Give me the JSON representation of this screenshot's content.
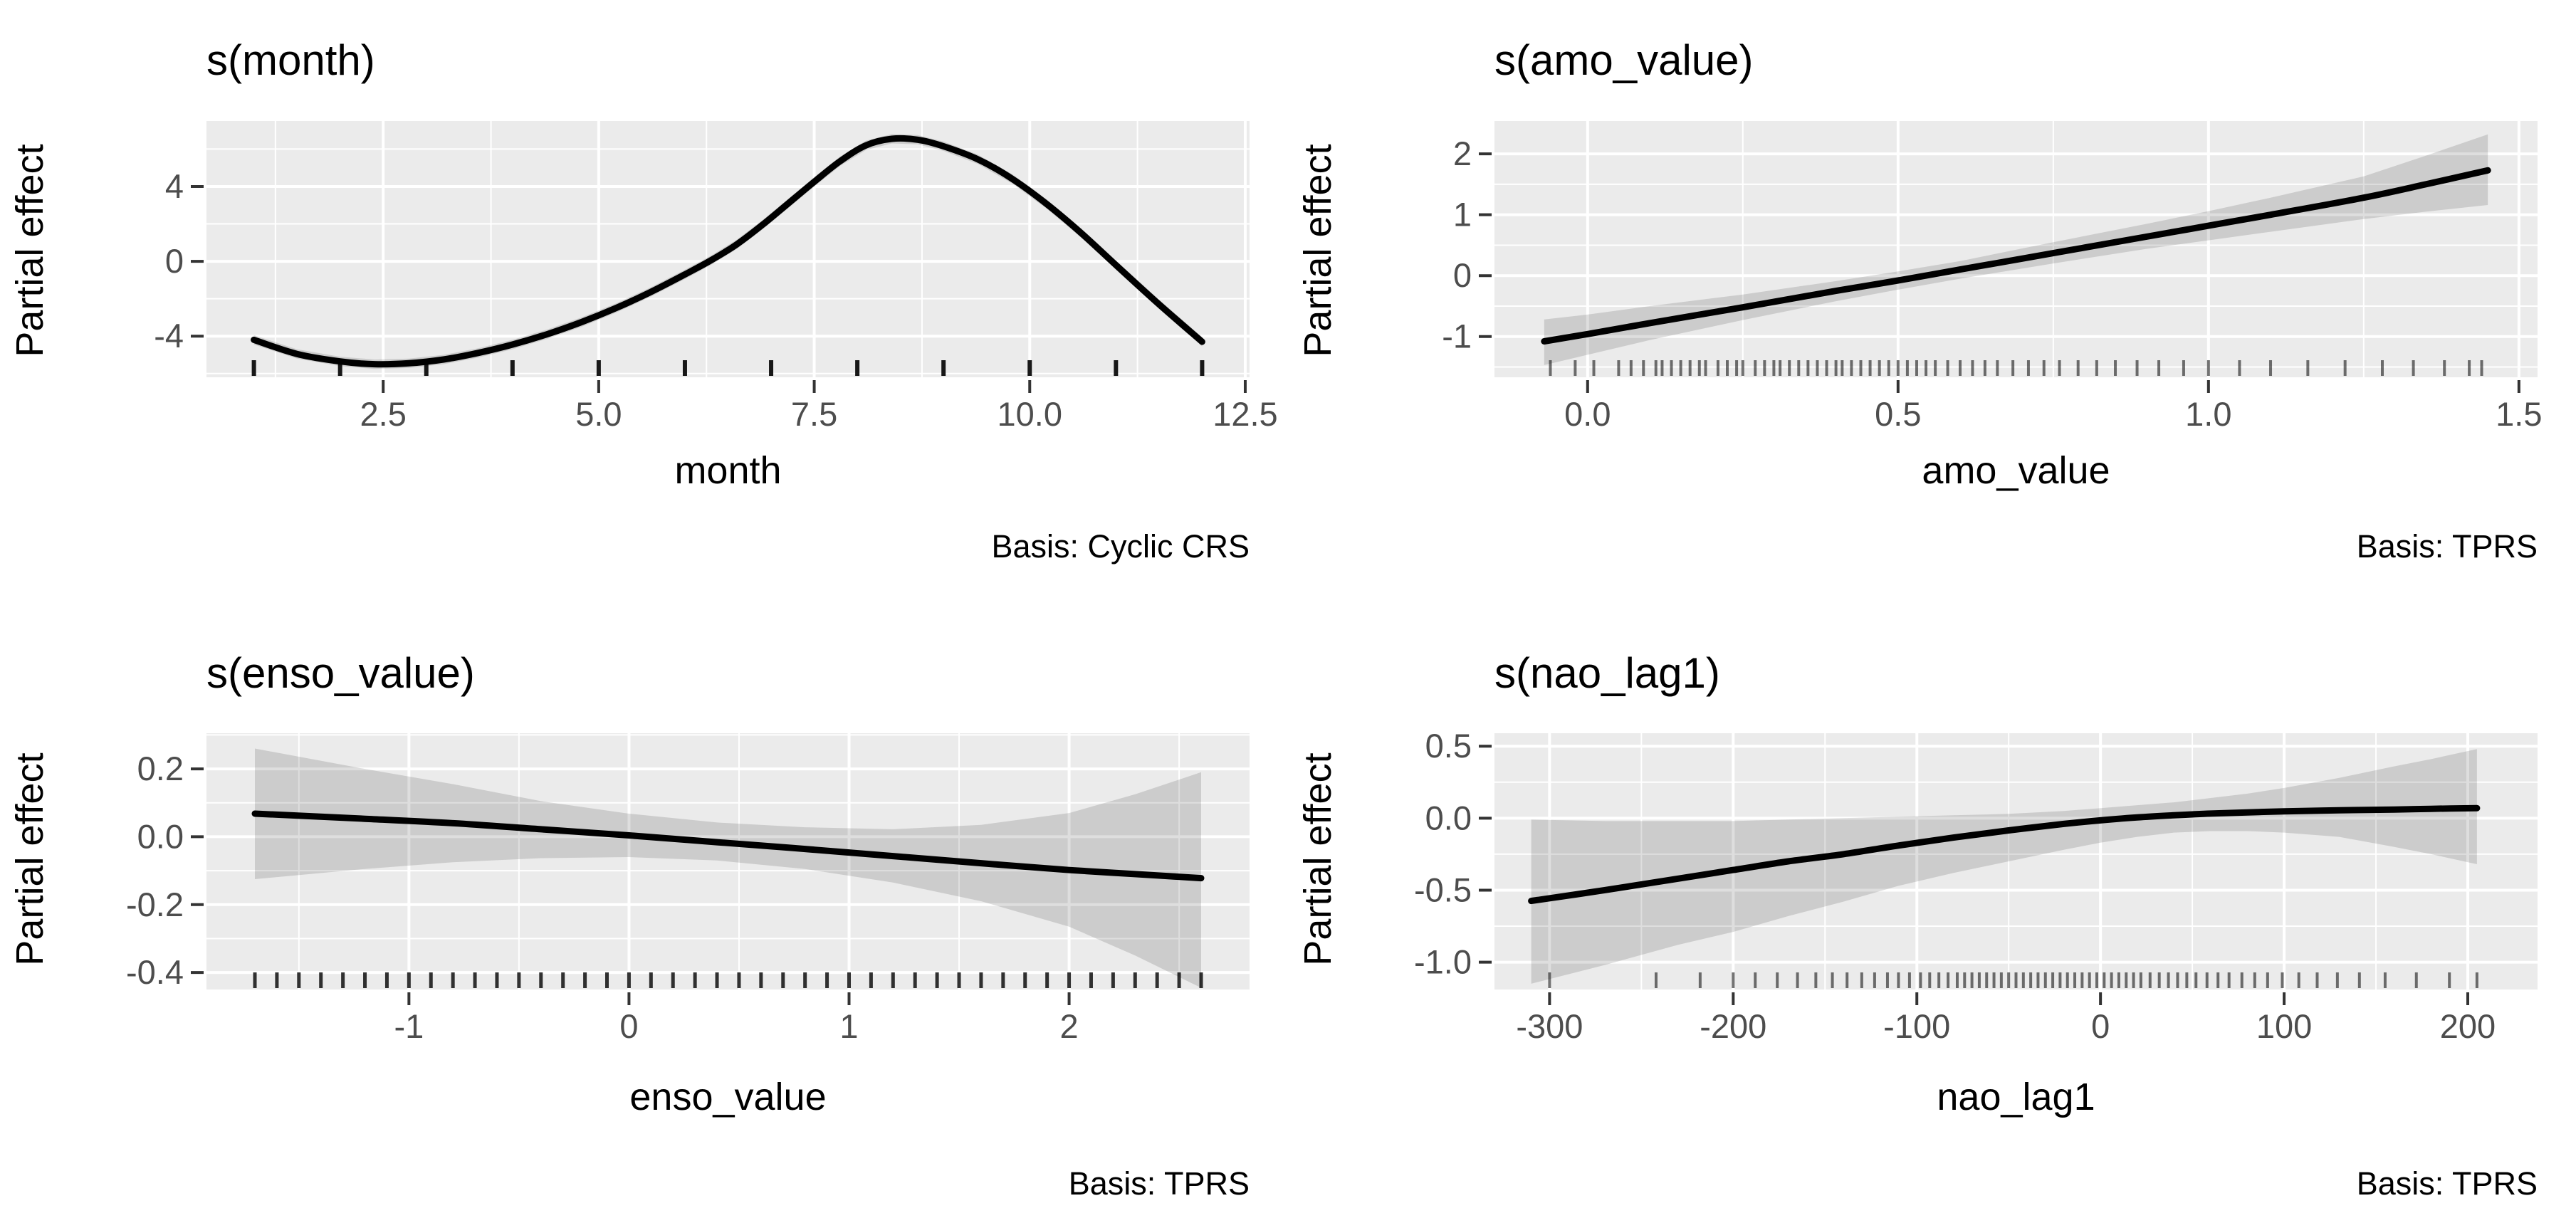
{
  "figure_type": "GAM partial effect plots (2x2 grid)",
  "theme": {
    "page_bg": "#FFFFFF",
    "panel_bg": "#EBEBEB",
    "grid_color": "#FFFFFF",
    "line_color": "#000000",
    "ribbon_color": "rgba(0,0,0,0.13)",
    "tick_color": "#333333",
    "tick_label_color": "#4D4D4D",
    "text_color": "#000000"
  },
  "chart_data": [
    {
      "type": "line",
      "title": "s(month)",
      "xlabel": "month",
      "ylabel": "Partial effect",
      "caption": "Basis: Cyclic CRS",
      "legend": "none",
      "grid": "on",
      "xlim": [
        0.45,
        12.55
      ],
      "ylim": [
        -6.2,
        7.5
      ],
      "xticks": {
        "values": [
          2.5,
          5.0,
          7.5,
          10.0,
          12.5
        ],
        "labels": [
          "2.5",
          "5.0",
          "7.5",
          "10.0",
          "12.5"
        ]
      },
      "yticks": {
        "values": [
          -4,
          0,
          4
        ],
        "labels": [
          "-4",
          "0",
          "4"
        ]
      },
      "xminor": [
        1.25,
        3.75,
        6.25,
        8.75,
        11.25
      ],
      "yminor": [
        -6,
        -2,
        2,
        6
      ],
      "line": {
        "x": [
          1,
          1.5,
          2,
          2.4,
          2.8,
          3.2,
          3.6,
          4,
          4.4,
          4.8,
          5.2,
          5.6,
          6,
          6.3,
          6.6,
          6.9,
          7.2,
          7.5,
          7.8,
          8.1,
          8.4,
          8.7,
          9,
          9.4,
          9.8,
          10.2,
          10.6,
          11,
          11.5,
          12
        ],
        "y": [
          -4.2,
          -4.95,
          -5.35,
          -5.5,
          -5.45,
          -5.25,
          -4.9,
          -4.45,
          -3.9,
          -3.25,
          -2.5,
          -1.65,
          -0.7,
          0.05,
          0.9,
          1.95,
          3.1,
          4.25,
          5.35,
          6.2,
          6.55,
          6.5,
          6.15,
          5.45,
          4.4,
          3.05,
          1.5,
          -0.2,
          -2.3,
          -4.3
        ]
      },
      "ribbon": {
        "x": [
          1,
          1.5,
          2,
          2.4,
          2.8,
          3.2,
          3.6,
          4,
          4.4,
          4.8,
          5.2,
          5.6,
          6,
          6.3,
          6.6,
          6.9,
          7.2,
          7.5,
          7.8,
          8.1,
          8.4,
          8.7,
          9,
          9.4,
          9.8,
          10.2,
          10.6,
          11,
          11.5,
          12
        ],
        "lo": [
          -4.45,
          -5.2,
          -5.6,
          -5.75,
          -5.7,
          -5.5,
          -5.15,
          -4.7,
          -4.15,
          -3.5,
          -2.75,
          -1.9,
          -0.95,
          -0.2,
          0.65,
          1.7,
          2.85,
          4.0,
          5.1,
          5.95,
          6.3,
          6.25,
          5.9,
          5.2,
          4.15,
          2.8,
          1.25,
          -0.45,
          -2.55,
          -4.55
        ],
        "hi": [
          -3.95,
          -4.7,
          -5.1,
          -5.25,
          -5.2,
          -5.0,
          -4.65,
          -4.2,
          -3.65,
          -3.0,
          -2.25,
          -1.4,
          -0.45,
          0.3,
          1.15,
          2.2,
          3.35,
          4.5,
          5.6,
          6.45,
          6.8,
          6.75,
          6.4,
          5.7,
          4.65,
          3.3,
          1.75,
          0.05,
          -2.05,
          -4.05
        ]
      },
      "rug": [
        1,
        2,
        3,
        4,
        5,
        6,
        7,
        8,
        9,
        10,
        11,
        12
      ],
      "rug_opacity": 0.9,
      "rug_width": 6
    },
    {
      "type": "line",
      "title": "s(amo_value)",
      "xlabel": "amo_value",
      "ylabel": "Partial effect",
      "caption": "Basis: TPRS",
      "legend": "none",
      "grid": "on",
      "xlim": [
        -0.15,
        1.53
      ],
      "ylim": [
        -1.67,
        2.54
      ],
      "xticks": {
        "values": [
          0.0,
          0.5,
          1.0,
          1.5
        ],
        "labels": [
          "0.0",
          "0.5",
          "1.0",
          "1.5"
        ]
      },
      "yticks": {
        "values": [
          -1,
          0,
          1,
          2
        ],
        "labels": [
          "-1",
          "0",
          "1",
          "2"
        ]
      },
      "xminor": [
        0.25,
        0.75,
        1.25
      ],
      "yminor": [
        -1.5,
        -0.5,
        0.5,
        1.5
      ],
      "line": {
        "x": [
          -0.07,
          0,
          0.1,
          0.25,
          0.4,
          0.5,
          0.6,
          0.75,
          0.9,
          1.0,
          1.1,
          1.25,
          1.35,
          1.45
        ],
        "y": [
          -1.08,
          -0.96,
          -0.78,
          -0.52,
          -0.25,
          -0.08,
          0.1,
          0.37,
          0.64,
          0.82,
          1.0,
          1.28,
          1.5,
          1.73
        ]
      },
      "ribbon": {
        "x": [
          -0.07,
          0,
          0.1,
          0.25,
          0.4,
          0.5,
          0.6,
          0.75,
          0.9,
          1.0,
          1.1,
          1.25,
          1.35,
          1.45
        ],
        "lo": [
          -1.47,
          -1.3,
          -1.06,
          -0.73,
          -0.42,
          -0.23,
          -0.05,
          0.2,
          0.44,
          0.58,
          0.72,
          0.93,
          1.05,
          1.16
        ],
        "hi": [
          -0.72,
          -0.64,
          -0.5,
          -0.31,
          -0.09,
          0.07,
          0.24,
          0.55,
          0.85,
          1.06,
          1.28,
          1.63,
          1.97,
          2.32
        ]
      },
      "rug": [
        -0.06,
        -0.02,
        0.01,
        0.05,
        0.07,
        0.09,
        0.11,
        0.12,
        0.135,
        0.15,
        0.165,
        0.18,
        0.19,
        0.21,
        0.225,
        0.24,
        0.25,
        0.27,
        0.285,
        0.3,
        0.31,
        0.325,
        0.34,
        0.355,
        0.37,
        0.385,
        0.4,
        0.41,
        0.425,
        0.44,
        0.455,
        0.47,
        0.485,
        0.5,
        0.515,
        0.53,
        0.545,
        0.56,
        0.58,
        0.6,
        0.62,
        0.64,
        0.66,
        0.685,
        0.71,
        0.735,
        0.76,
        0.79,
        0.82,
        0.85,
        0.885,
        0.92,
        0.96,
        1.0,
        1.05,
        1.1,
        1.16,
        1.22,
        1.28,
        1.33,
        1.38,
        1.42,
        1.44
      ],
      "rug_opacity": 0.55,
      "rug_width": 4
    },
    {
      "type": "line",
      "title": "s(enso_value)",
      "xlabel": "enso_value",
      "ylabel": "Partial effect",
      "caption": "Basis: TPRS",
      "legend": "none",
      "grid": "on",
      "xlim": [
        -1.92,
        2.82
      ],
      "ylim": [
        -0.45,
        0.305
      ],
      "xticks": {
        "values": [
          -1,
          0,
          1,
          2
        ],
        "labels": [
          "-1",
          "0",
          "1",
          "2"
        ]
      },
      "yticks": {
        "values": [
          -0.4,
          -0.2,
          0.0,
          0.2
        ],
        "labels": [
          "-0.4",
          "-0.2",
          "0.0",
          "0.2"
        ]
      },
      "xminor": [
        -1.5,
        -0.5,
        0.5,
        1.5,
        2.5
      ],
      "yminor": [
        -0.3,
        -0.1,
        0.1,
        0.3
      ],
      "line": {
        "x": [
          -1.7,
          -1.2,
          -0.8,
          -0.4,
          0,
          0.4,
          0.8,
          1.2,
          1.6,
          2.0,
          2.3,
          2.6
        ],
        "y": [
          0.068,
          0.053,
          0.04,
          0.022,
          0.004,
          -0.016,
          -0.036,
          -0.057,
          -0.078,
          -0.098,
          -0.11,
          -0.122
        ]
      },
      "ribbon": {
        "x": [
          -1.7,
          -1.2,
          -0.8,
          -0.4,
          0,
          0.4,
          0.8,
          1.2,
          1.6,
          2.0,
          2.3,
          2.6
        ],
        "lo": [
          -0.125,
          -0.095,
          -0.075,
          -0.063,
          -0.06,
          -0.07,
          -0.095,
          -0.135,
          -0.19,
          -0.265,
          -0.35,
          -0.445
        ],
        "hi": [
          0.26,
          0.2,
          0.155,
          0.105,
          0.068,
          0.042,
          0.028,
          0.022,
          0.035,
          0.07,
          0.125,
          0.19
        ]
      },
      "rug": [
        -1.7,
        -1.6,
        -1.5,
        -1.4,
        -1.3,
        -1.2,
        -1.1,
        -1.0,
        -0.9,
        -0.8,
        -0.7,
        -0.6,
        -0.5,
        -0.4,
        -0.3,
        -0.2,
        -0.1,
        0,
        0.1,
        0.2,
        0.3,
        0.4,
        0.5,
        0.6,
        0.7,
        0.8,
        0.9,
        1.0,
        1.1,
        1.2,
        1.3,
        1.4,
        1.5,
        1.6,
        1.7,
        1.8,
        1.9,
        2.0,
        2.1,
        2.2,
        2.3,
        2.4,
        2.5,
        2.6
      ],
      "rug_opacity": 0.8,
      "rug_width": 5
    },
    {
      "type": "line",
      "title": "s(nao_lag1)",
      "xlabel": "nao_lag1",
      "ylabel": "Partial effect",
      "caption": "Basis: TPRS",
      "legend": "none",
      "grid": "on",
      "xlim": [
        -330,
        238
      ],
      "ylim": [
        -1.19,
        0.59
      ],
      "xticks": {
        "values": [
          -300,
          -200,
          -100,
          0,
          100,
          200
        ],
        "labels": [
          "-300",
          "-200",
          "-100",
          "0",
          "100",
          "200"
        ]
      },
      "yticks": {
        "values": [
          -1.0,
          -0.5,
          0.0,
          0.5
        ],
        "labels": [
          "-1.0",
          "-0.5",
          "0.0",
          "0.5"
        ]
      },
      "xminor": [
        -250,
        -150,
        -50,
        50,
        150
      ],
      "yminor": [
        -0.75,
        -0.25,
        0.25
      ],
      "line": {
        "x": [
          -310,
          -270,
          -230,
          -200,
          -170,
          -140,
          -110,
          -80,
          -50,
          -20,
          0,
          20,
          40,
          60,
          80,
          100,
          130,
          160,
          180,
          205
        ],
        "y": [
          -0.575,
          -0.5,
          -0.42,
          -0.36,
          -0.3,
          -0.25,
          -0.19,
          -0.135,
          -0.085,
          -0.04,
          -0.015,
          0.005,
          0.02,
          0.032,
          0.04,
          0.047,
          0.055,
          0.06,
          0.065,
          0.07
        ]
      },
      "ribbon": {
        "x": [
          -310,
          -270,
          -230,
          -200,
          -170,
          -140,
          -110,
          -80,
          -50,
          -20,
          0,
          20,
          40,
          60,
          80,
          100,
          130,
          160,
          180,
          205
        ],
        "lo": [
          -1.15,
          -1.02,
          -0.88,
          -0.79,
          -0.68,
          -0.58,
          -0.47,
          -0.38,
          -0.3,
          -0.22,
          -0.17,
          -0.13,
          -0.1,
          -0.09,
          -0.09,
          -0.1,
          -0.13,
          -0.2,
          -0.25,
          -0.32
        ],
        "hi": [
          -0.01,
          -0.02,
          -0.02,
          -0.02,
          -0.01,
          0.0,
          0.01,
          0.02,
          0.03,
          0.05,
          0.07,
          0.09,
          0.11,
          0.14,
          0.17,
          0.21,
          0.28,
          0.36,
          0.41,
          0.48
        ]
      },
      "rug": [
        -300,
        -242,
        -218,
        -200,
        -188,
        -176,
        -165,
        -155,
        -146,
        -138,
        -130,
        -123,
        -116,
        -110,
        -104,
        -98,
        -93,
        -88,
        -83,
        -78,
        -74,
        -70,
        -66,
        -62,
        -58,
        -54,
        -50,
        -46,
        -42,
        -38,
        -34,
        -30,
        -26,
        -22,
        -18,
        -14,
        -10,
        -6,
        -2,
        2,
        6,
        10,
        14,
        18,
        22,
        27,
        32,
        37,
        42,
        47,
        52,
        58,
        64,
        70,
        77,
        84,
        91,
        99,
        108,
        118,
        129,
        141,
        155,
        172,
        190,
        205
      ],
      "rug_opacity": 0.55,
      "rug_width": 4
    }
  ]
}
